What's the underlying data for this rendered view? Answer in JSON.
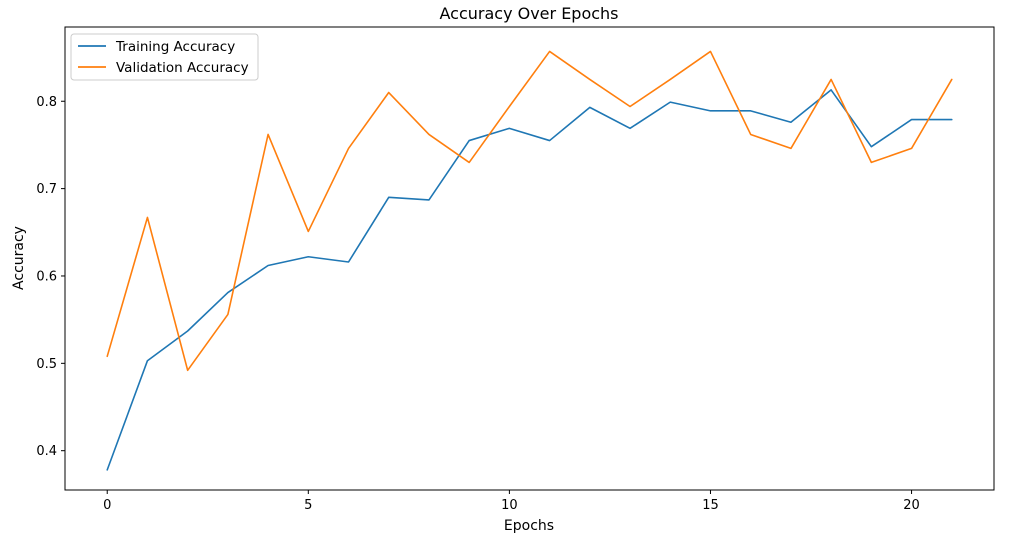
{
  "chart_data": {
    "type": "line",
    "title": "Accuracy Over Epochs",
    "xlabel": "Epochs",
    "ylabel": "Accuracy",
    "xlim": [
      -1.05,
      22.05
    ],
    "ylim": [
      0.355,
      0.885
    ],
    "xticks": [
      0,
      5,
      10,
      15,
      20
    ],
    "yticks": [
      0.4,
      0.5,
      0.6,
      0.7,
      0.8
    ],
    "grid": false,
    "legend_position": "top-left",
    "x": [
      0,
      1,
      2,
      3,
      4,
      5,
      6,
      7,
      8,
      9,
      10,
      11,
      12,
      13,
      14,
      15,
      16,
      17,
      18,
      19,
      20,
      21
    ],
    "series": [
      {
        "name": "Training Accuracy",
        "color": "#1f77b4",
        "values": [
          0.378,
          0.503,
          0.537,
          0.581,
          0.612,
          0.622,
          0.616,
          0.69,
          0.687,
          0.755,
          0.769,
          0.755,
          0.793,
          0.769,
          0.799,
          0.789,
          0.789,
          0.776,
          0.813,
          0.748,
          0.779,
          0.779
        ]
      },
      {
        "name": "Validation Accuracy",
        "color": "#ff7f0e",
        "values": [
          0.508,
          0.667,
          0.492,
          0.556,
          0.762,
          0.651,
          0.746,
          0.81,
          0.762,
          0.73,
          0.794,
          0.857,
          0.825,
          0.794,
          0.825,
          0.857,
          0.762,
          0.746,
          0.825,
          0.73,
          0.746,
          0.825
        ]
      }
    ]
  }
}
